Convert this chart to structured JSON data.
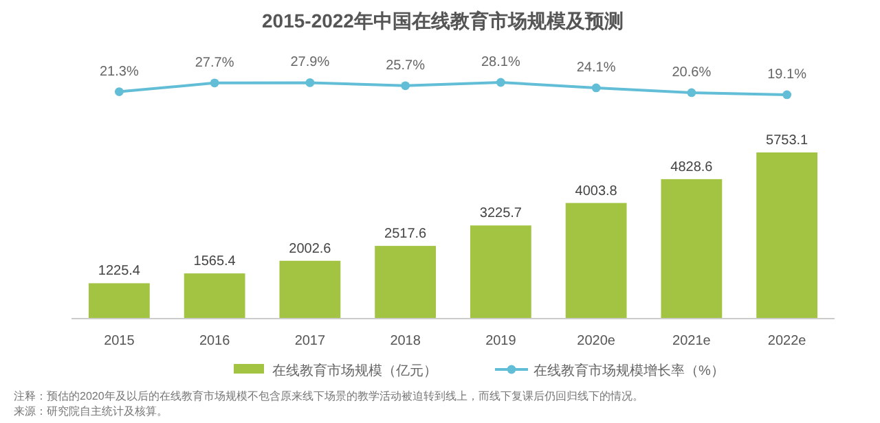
{
  "chart_data": [
    {
      "type": "line",
      "title": "2015-2022年中国在线教育市场规模及预测",
      "categories": [
        null,
        null,
        null,
        null,
        null,
        null,
        null,
        null
      ],
      "tick_labels": false,
      "marker": "circle",
      "legend": "bottom",
      "series": [
        {
          "name": "在线教育市场规模增长率（%）",
          "color": "#62bdd6",
          "values": [
            21.3,
            27.7,
            27.9,
            25.7,
            28.1,
            24.1,
            20.6,
            19.1
          ],
          "value_labels": [
            "21.3%",
            "27.7%",
            "27.9%",
            "25.7%",
            "28.1%",
            "24.1%",
            "20.6%",
            "19.1%"
          ]
        }
      ]
    },
    {
      "type": "bar",
      "categories": [
        "2015",
        "2016",
        "2017",
        "2018",
        "2019",
        "2020e",
        "2021e",
        "2022e"
      ],
      "data_labels": true,
      "legend": "bottom",
      "tick_labels": "x",
      "series": [
        {
          "name": "在线教育市场规模（亿元）",
          "color": "#a3c443",
          "values": [
            1225.4,
            1565.4,
            2002.6,
            2517.6,
            3225.7,
            4003.8,
            4828.6,
            5753.1
          ]
        }
      ],
      "annotations": [
        "注释：预估的2020年及以后的在线教育市场规模不包含原来线下场景的教学活动被迫转到线上，而线下复课后仍回归线下的情况。",
        "来源：研究院自主统计及核算。"
      ]
    }
  ]
}
